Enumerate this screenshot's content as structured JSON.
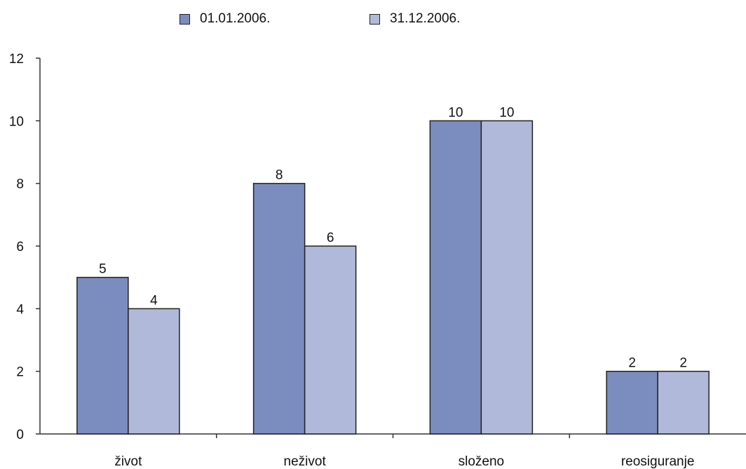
{
  "chart_data": {
    "type": "bar",
    "categories": [
      "život",
      "neživot",
      "složeno",
      "reosiguranje"
    ],
    "series": [
      {
        "name": "01.01.2006.",
        "values": [
          5,
          8,
          10,
          2
        ],
        "color": "#7b8dbf"
      },
      {
        "name": "31.12.2006.",
        "values": [
          4,
          6,
          10,
          2
        ],
        "color": "#b0b9da"
      }
    ],
    "ylim": [
      0,
      12
    ],
    "yticks": [
      "0",
      "2",
      "4",
      "6",
      "8",
      "10",
      "12"
    ],
    "data_labels": true,
    "grid": false,
    "legend_position": "top-center",
    "title": "",
    "xlabel": "",
    "ylabel": ""
  }
}
